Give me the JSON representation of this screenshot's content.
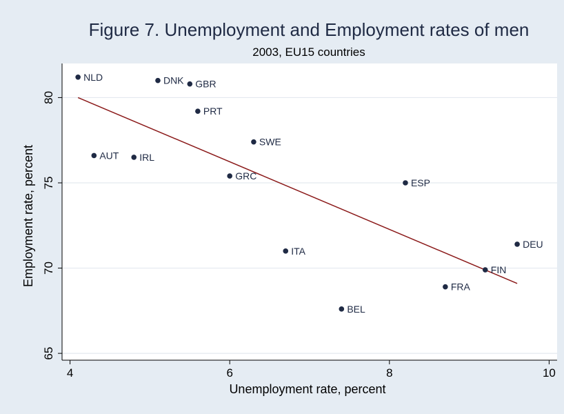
{
  "chart_data": {
    "type": "scatter",
    "title": "Figure 7.  Unemployment and Employment rates of men",
    "subtitle": "2003, EU15 countries",
    "xlabel": "Unemployment rate, percent",
    "ylabel": "Employment rate, percent",
    "xlim": [
      3.9,
      10.1
    ],
    "ylim": [
      64.6,
      82.0
    ],
    "x_ticks": [
      4,
      6,
      8,
      10
    ],
    "y_ticks": [
      65,
      70,
      75,
      80
    ],
    "grid": "horizontal",
    "points": [
      {
        "label": "NLD",
        "x": 4.1,
        "y": 81.2
      },
      {
        "label": "DNK",
        "x": 5.1,
        "y": 81.0
      },
      {
        "label": "GBR",
        "x": 5.5,
        "y": 80.8
      },
      {
        "label": "PRT",
        "x": 5.6,
        "y": 79.2
      },
      {
        "label": "SWE",
        "x": 6.3,
        "y": 77.4
      },
      {
        "label": "AUT",
        "x": 4.3,
        "y": 76.6
      },
      {
        "label": "IRL",
        "x": 4.8,
        "y": 76.5
      },
      {
        "label": "GRC",
        "x": 6.0,
        "y": 75.4
      },
      {
        "label": "ESP",
        "x": 8.2,
        "y": 75.0
      },
      {
        "label": "ITA",
        "x": 6.7,
        "y": 71.0
      },
      {
        "label": "DEU",
        "x": 9.6,
        "y": 71.4
      },
      {
        "label": "FIN",
        "x": 9.2,
        "y": 69.9
      },
      {
        "label": "FRA",
        "x": 8.7,
        "y": 68.9
      },
      {
        "label": "BEL",
        "x": 7.4,
        "y": 67.6
      }
    ],
    "fit_line": {
      "x": [
        4.1,
        9.6
      ],
      "y": [
        80.0,
        69.1
      ]
    },
    "colors": {
      "background": "#e5ecf3",
      "plot_bg": "#ffffff",
      "grid": "#e3e9ef",
      "marker": "#1f2a44",
      "fit": "#8b1a1a"
    }
  }
}
